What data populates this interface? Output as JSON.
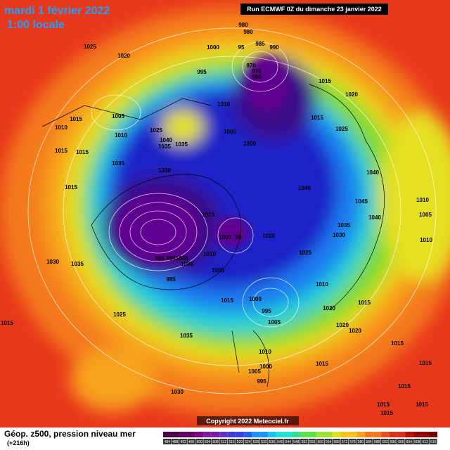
{
  "header": {
    "date": "mardi 1 février 2022",
    "local_time": "1:00 locale",
    "run": "Run ECMWF 0Z du dimanche 23 janvier 2022"
  },
  "footer": {
    "title": "Géop. z500, pression niveau mer",
    "lead_time": "(+216h)",
    "copyright": "Copyright 2022 Meteociel.fr"
  },
  "colorbar_labels": [
    "484",
    "488",
    "492",
    "496",
    "500",
    "504",
    "508",
    "512",
    "516",
    "520",
    "524",
    "528",
    "532",
    "536",
    "540",
    "544",
    "548",
    "552",
    "556",
    "560",
    "564",
    "568",
    "572",
    "576",
    "580",
    "584",
    "588",
    "592",
    "596",
    "600",
    "604",
    "608",
    "612",
    "616"
  ],
  "isobar_labels": [
    "1025",
    "1020",
    "980",
    "980",
    "985",
    "990",
    "1000",
    "95",
    "995",
    "970",
    "975",
    "980",
    "1015",
    "1020",
    "1010",
    "1005",
    "1015",
    "1010",
    "1015",
    "1025",
    "1005",
    "1000",
    "1010",
    "1025",
    "1040",
    "1035",
    "1035",
    "1015",
    "1015",
    "1035",
    "1030",
    "1040",
    "1015",
    "1040",
    "1045",
    "1040",
    "1010",
    "1005",
    "1010",
    "1010",
    "1035",
    "1030",
    "1020",
    "1000",
    "90",
    "1030",
    "1035",
    "1025",
    "1010",
    "985",
    "9991000",
    "1005",
    "1005",
    "985",
    "1010",
    "1015",
    "1000",
    "995",
    "1015",
    "1020",
    "1025",
    "1005",
    "1020",
    "1020",
    "1015",
    "1035",
    "1015",
    "1010",
    "1015",
    "1000",
    "1005",
    "1015",
    "995",
    "1030",
    "1015",
    "1015",
    "1015",
    "1015"
  ]
}
